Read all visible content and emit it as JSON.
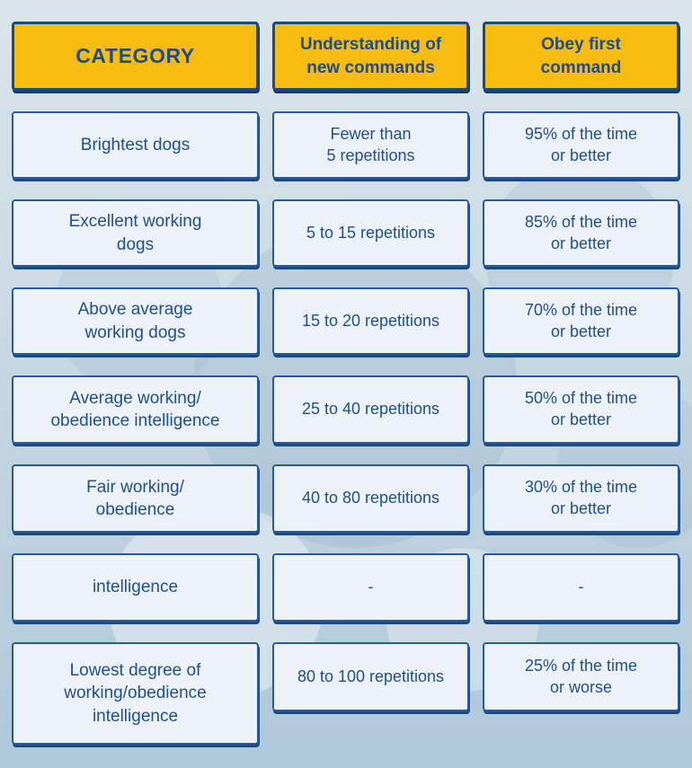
{
  "colors": {
    "header_fill": "#f8bb10",
    "header_border": "#1c4a7e",
    "cell_fill": "#edf2f8",
    "cell_border": "#2a5a9c",
    "shadow": "#1b4a7e",
    "text": "#1d4f91",
    "background_top": "#dae4eb",
    "background_bottom": "#aec9db"
  },
  "display": {
    "headers": [
      "CATEGORY",
      "Understanding of\nnew commands",
      "Obey first\ncommand"
    ],
    "rows": [
      {
        "category": "Brightest dogs",
        "understanding": "Fewer than\n5 repetitions",
        "obey": "95% of the time\nor better"
      },
      {
        "category": "Excellent working\ndogs",
        "understanding": "5 to 15 repetitions",
        "obey": "85% of the time\nor better"
      },
      {
        "category": "Above average\nworking dogs",
        "understanding": "15 to 20 repetitions",
        "obey": "70% of the time\nor better"
      },
      {
        "category": "Average working/\nobedience intelligence",
        "understanding": "25 to 40 repetitions",
        "obey": "50% of the time\nor better"
      },
      {
        "category": "Fair working/\nobedience",
        "understanding": "40 to 80 repetitions",
        "obey": "30% of the time\nor better"
      },
      {
        "category": "intelligence",
        "understanding": "-",
        "obey": "-"
      },
      {
        "category": "Lowest degree of\nworking/obedience\nintelligence",
        "understanding": "80 to 100 repetitions",
        "obey": "25% of the time\nor worse"
      }
    ]
  },
  "chart_data": {
    "type": "table",
    "columns": [
      "CATEGORY",
      "Understanding of new commands",
      "Obey first command"
    ],
    "rows": [
      [
        "Brightest dogs",
        "Fewer than 5 repetitions",
        "95% of the time or better"
      ],
      [
        "Excellent working dogs",
        "5 to 15 repetitions",
        "85% of the time or better"
      ],
      [
        "Above average working dogs",
        "15 to 20 repetitions",
        "70% of the time or better"
      ],
      [
        "Average working/ obedience intelligence",
        "25 to 40 repetitions",
        "50% of the time or better"
      ],
      [
        "Fair working/ obedience",
        "40 to 80 repetitions",
        "30% of the time or better"
      ],
      [
        "intelligence",
        "-",
        "-"
      ],
      [
        "Lowest degree of working/obedience intelligence",
        "80 to 100 repetitions",
        "25% of the time or worse"
      ]
    ]
  }
}
